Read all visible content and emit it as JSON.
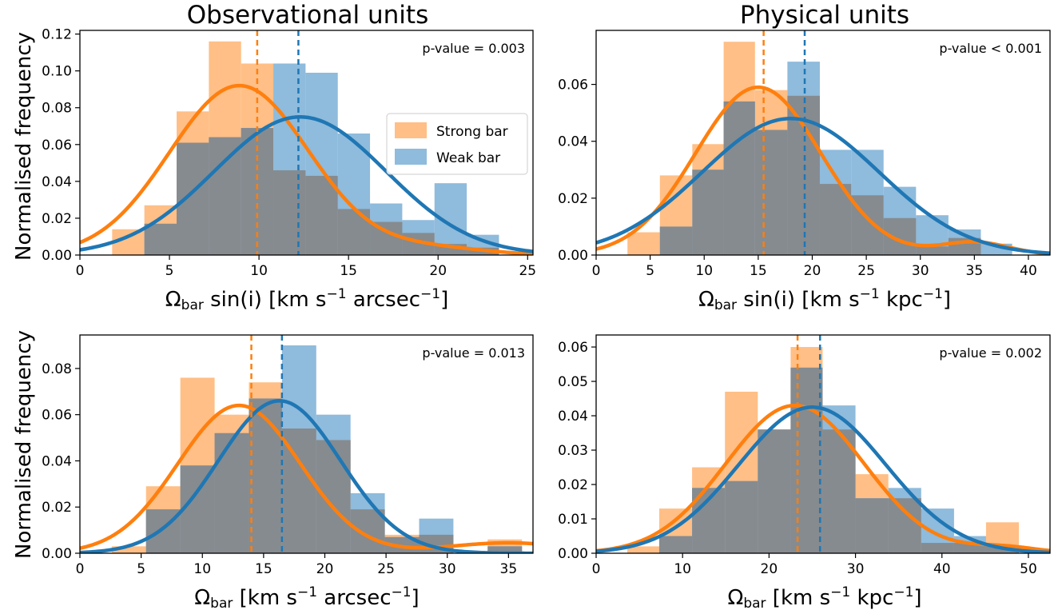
{
  "column_titles": [
    "Observational units",
    "Physical units"
  ],
  "colors": {
    "strong": "#ff7f0e",
    "weak": "#1f77b4",
    "strong_fill": "#ffbf86",
    "weak_fill": "#8fbbdc",
    "overlap_fill": "#868b8f"
  },
  "legend": {
    "strong": "Strong bar",
    "weak": "Weak bar"
  },
  "ylabel": "Normalised frequency",
  "xlabels": {
    "top_left": {
      "symbol": "Ω",
      "sub": "bar",
      "mid": " sin(i)  [km s",
      "exp1": "−1",
      "unit": " arcsec",
      "exp2": "−1",
      "end": "]"
    },
    "top_right": {
      "symbol": "Ω",
      "sub": "bar",
      "mid": " sin(i) [km s",
      "exp1": "−1",
      "unit": " kpc",
      "exp2": "−1",
      "end": "]"
    },
    "bottom_left": {
      "symbol": "Ω",
      "sub": "bar",
      "mid": " [km s",
      "exp1": "−1",
      "unit": " arcsec",
      "exp2": "−1",
      "end": "]"
    },
    "bottom_right": {
      "symbol": "Ω",
      "sub": "bar",
      "mid": " [km s",
      "exp1": "−1",
      "unit": " kpc",
      "exp2": "−1",
      "end": "]"
    }
  },
  "chart_data": [
    {
      "id": "top_left",
      "type": "histogram",
      "pvalue": "p-value = 0.003",
      "xlim": [
        0,
        25.3
      ],
      "ylim": [
        0,
        0.122
      ],
      "xticks": [
        0,
        5,
        10,
        15,
        20,
        25
      ],
      "xtick_labels": [
        "0",
        "5",
        "10",
        "15",
        "20",
        "25"
      ],
      "yticks": [
        0,
        0.02,
        0.04,
        0.06,
        0.08,
        0.1,
        0.12
      ],
      "ytick_labels": [
        "0.00",
        "0.02",
        "0.04",
        "0.06",
        "0.08",
        "0.10",
        "0.12"
      ],
      "legend": true,
      "strong": {
        "edges": [
          1.8,
          3.6,
          5.4,
          7.2,
          9.0,
          10.8,
          12.6,
          14.4,
          16.2,
          18.0,
          19.8,
          21.6,
          23.4
        ],
        "heights": [
          0.014,
          0.027,
          0.078,
          0.116,
          0.104,
          0.046,
          0.043,
          0.025,
          0.018,
          0.012,
          0.006,
          0.004
        ],
        "fit": {
          "mean": 8.9,
          "sigma": 3.9,
          "peak": 0.092,
          "tail_mean": 19.5,
          "tail_sigma": 3.0,
          "tail_amp": 0.004
        },
        "median": 9.9
      },
      "weak": {
        "edges": [
          3.6,
          5.4,
          7.2,
          9.0,
          10.8,
          12.6,
          14.4,
          16.2,
          18.0,
          19.8,
          21.6,
          23.4
        ],
        "heights": [
          0.017,
          0.061,
          0.064,
          0.069,
          0.104,
          0.099,
          0.066,
          0.028,
          0.019,
          0.039,
          0.011
        ],
        "fit": {
          "mean": 12.3,
          "sigma": 4.8,
          "peak": 0.075
        },
        "median": 12.2
      }
    },
    {
      "id": "top_right",
      "type": "histogram",
      "pvalue": "p-value < 0.001",
      "xlim": [
        0,
        42
      ],
      "ylim": [
        0,
        0.079
      ],
      "xticks": [
        0,
        5,
        10,
        15,
        20,
        25,
        30,
        35,
        40
      ],
      "xtick_labels": [
        "0",
        "5",
        "10",
        "15",
        "20",
        "25",
        "30",
        "35",
        "40"
      ],
      "yticks": [
        0,
        0.02,
        0.04,
        0.06
      ],
      "ytick_labels": [
        "0.00",
        "0.02",
        "0.04",
        "0.06"
      ],
      "legend": false,
      "strong": {
        "edges": [
          2.9,
          5.9,
          8.9,
          11.8,
          14.7,
          17.7,
          20.7,
          23.6,
          26.6,
          29.6,
          32.6,
          35.6
        ],
        "heights": [
          0.008,
          0.028,
          0.039,
          0.075,
          0.058,
          0.056,
          0.025,
          0.021,
          0.013,
          0.003,
          0.006
        ],
        "fit": {
          "mean": 15.0,
          "sigma": 5.8,
          "peak": 0.059,
          "tail_mean": 35.0,
          "tail_sigma": 3.2,
          "tail_amp": 0.0045
        },
        "median": 15.5
      },
      "weak": {
        "edges": [
          5.9,
          8.9,
          11.8,
          14.7,
          17.7,
          20.7,
          23.6,
          26.6,
          29.6,
          32.6,
          35.6,
          38.5
        ],
        "heights": [
          0.01,
          0.03,
          0.054,
          0.044,
          0.068,
          0.037,
          0.037,
          0.024,
          0.014,
          0.009,
          0.004
        ],
        "fit": {
          "mean": 18.0,
          "sigma": 8.2,
          "peak": 0.048
        },
        "median": 19.3
      }
    },
    {
      "id": "bottom_left",
      "type": "histogram",
      "pvalue": "p-value = 0.013",
      "xlim": [
        0,
        37
      ],
      "ylim": [
        0,
        0.0945
      ],
      "xticks": [
        0,
        5,
        10,
        15,
        20,
        25,
        30,
        35
      ],
      "xtick_labels": [
        "0",
        "5",
        "10",
        "15",
        "20",
        "25",
        "30",
        "35"
      ],
      "yticks": [
        0,
        0.02,
        0.04,
        0.06,
        0.08
      ],
      "ytick_labels": [
        "0.00",
        "0.02",
        "0.04",
        "0.06",
        "0.08"
      ],
      "legend": false,
      "strong": {
        "edges": [
          2.6,
          5.4,
          8.2,
          11.0,
          13.8,
          16.5,
          19.3,
          22.1,
          24.9,
          27.7,
          30.5,
          33.3,
          36.1
        ],
        "heights": [
          0.003,
          0.029,
          0.076,
          0.06,
          0.074,
          0.054,
          0.049,
          0.019,
          0.008,
          0.008,
          0.0,
          0.006
        ],
        "fit": {
          "mean": 13.0,
          "sigma": 5.0,
          "peak": 0.064,
          "tail_mean": 35.0,
          "tail_sigma": 5.0,
          "tail_amp": 0.0045
        },
        "median": 14.0
      },
      "weak": {
        "edges": [
          5.4,
          8.2,
          11.0,
          13.8,
          16.5,
          19.3,
          22.1,
          24.9,
          27.7,
          30.5,
          33.3,
          36.1
        ],
        "heights": [
          0.019,
          0.038,
          0.052,
          0.067,
          0.09,
          0.06,
          0.026,
          0.007,
          0.015,
          0.0,
          0.003
        ],
        "fit": {
          "mean": 16.3,
          "sigma": 5.0,
          "peak": 0.066
        },
        "median": 16.5
      }
    },
    {
      "id": "bottom_right",
      "type": "histogram",
      "pvalue": "p-value = 0.002",
      "xlim": [
        0,
        52.5
      ],
      "ylim": [
        0,
        0.0635
      ],
      "xticks": [
        0,
        10,
        20,
        30,
        40,
        50
      ],
      "xtick_labels": [
        "0",
        "10",
        "20",
        "30",
        "40",
        "50"
      ],
      "yticks": [
        0,
        0.01,
        0.02,
        0.03,
        0.04,
        0.05,
        0.06
      ],
      "ytick_labels": [
        "0.00",
        "0.01",
        "0.02",
        "0.03",
        "0.04",
        "0.05",
        "0.06"
      ],
      "legend": false,
      "strong": {
        "edges": [
          3.6,
          7.3,
          11.1,
          14.9,
          18.7,
          22.5,
          26.2,
          30.0,
          33.8,
          37.6,
          41.4,
          45.1,
          48.9
        ],
        "heights": [
          0.002,
          0.013,
          0.025,
          0.047,
          0.036,
          0.06,
          0.036,
          0.023,
          0.016,
          0.003,
          0.003,
          0.009
        ],
        "fit": {
          "mean": 23.0,
          "sigma": 8.0,
          "peak": 0.043,
          "tail_mean": 47.0,
          "tail_sigma": 4.0,
          "tail_amp": 0.0018
        },
        "median": 23.3
      },
      "weak": {
        "edges": [
          7.3,
          11.1,
          14.9,
          18.7,
          22.5,
          26.2,
          30.0,
          33.8,
          37.6,
          41.4,
          45.1,
          48.9
        ],
        "heights": [
          0.005,
          0.019,
          0.021,
          0.036,
          0.054,
          0.043,
          0.016,
          0.019,
          0.013,
          0.005,
          0.002
        ],
        "fit": {
          "mean": 25.0,
          "sigma": 8.5,
          "peak": 0.0425
        },
        "median": 25.9
      }
    }
  ]
}
